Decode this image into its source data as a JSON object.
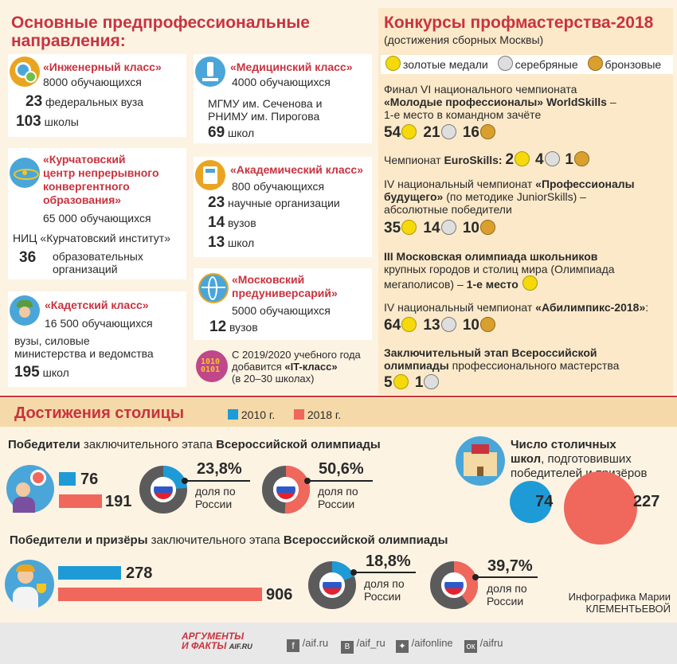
{
  "left_header": [
    "Основные предпрофессиональные",
    "направления:"
  ],
  "cards": {
    "engineering": {
      "title": "«Инженерный класс»",
      "students": "8000 обучающихся",
      "n1": "23",
      "t1": "федеральных вуза",
      "n2": "103",
      "t2": "школы"
    },
    "medical": {
      "title": "«Медицинский класс»",
      "students": "4000 обучающихся",
      "t1a": "МГМУ им. Сеченова и",
      "t1b": "РНИМУ им. Пирогова",
      "n2": "69",
      "t2": "школ"
    },
    "kurchatov": {
      "title": [
        "«Курчатовский",
        "центр непрерывного",
        "конвергентного",
        "образования»"
      ],
      "students": "65 000 обучающихся",
      "t1": "НИЦ «Курчатовский институт»",
      "n2": "36",
      "t2a": "образовательных",
      "t2b": "организаций"
    },
    "academic": {
      "title": "«Академический класс»",
      "students": "800 обучающихся",
      "n1": "23",
      "t1": "научные организации",
      "n2": "14",
      "t2": "вузов",
      "n3": "13",
      "t3": "школ"
    },
    "cadet": {
      "title": "«Кадетский класс»",
      "students": "16 500 обучающихся",
      "t1a": "вузы, силовые",
      "t1b": "министерства и ведомства",
      "n2": "195",
      "t2": "школ"
    },
    "preuniv": {
      "title": [
        "«Московский",
        "предуниверсарий»"
      ],
      "students": "5000 обучающихся",
      "n2": "12",
      "t2": "вузов"
    },
    "it": {
      "l1": "С 2019/2020 учебного года",
      "l2a": "добавится",
      "l2b": "«IT-класс»",
      "l3": "(в 20–30 школах)"
    }
  },
  "right": {
    "title": "Конкурсы профмастерства-2018",
    "subtitle": "(достижения сборных Москвы)",
    "legend": {
      "gold": "золотые медали",
      "silver": "серебряные",
      "bronze": "бронзовые"
    },
    "e1": {
      "l1": "Финал VI национального чемпионата",
      "l2": "«Молодые профессионалы» WorldSkills",
      "l2b": " –",
      "l3": "1-е место в командном зачёте",
      "g": "54",
      "s": "21",
      "b": "16"
    },
    "e2": {
      "a": "Чемпионат ",
      "b": "EuroSkills:",
      "g": "2",
      "s": "4",
      "br": "1"
    },
    "e3": {
      "l1a": "IV национальный чемпионат ",
      "l1b": "«Профессионалы",
      "l2a": "будущего»",
      "l2b": " (по методике JuniorSkills) –",
      "l3": "абсолютные победители",
      "g": "35",
      "s": "14",
      "b": "10"
    },
    "e4": {
      "l1": "III Московская олимпиада школьников",
      "l2": "крупных городов и столиц мира (Олимпиада",
      "l3a": "мегаполисов) – ",
      "l3b": "1-е место"
    },
    "e5": {
      "l1a": "IV национальный чемпионат ",
      "l1b": "«Абилимпикс-2018»",
      "l1c": ":",
      "g": "64",
      "s": "13",
      "b": "10"
    },
    "e6": {
      "l1": "Заключительный этап Всероссийской",
      "l2a": "олимпиады",
      "l2b": " профессионального мастерства",
      "g": "5",
      "s": "1"
    }
  },
  "bottom": {
    "title": "Достижения столицы",
    "sec1": {
      "a": "Победители",
      "b": " заключительного этапа ",
      "c": "Всероссийской олимпиады"
    },
    "sec2": {
      "a": "Победители и призёры",
      "b": " заключительного этапа ",
      "c": "Всероссийской олимпиады"
    },
    "share_label": [
      "доля по",
      "России"
    ],
    "schools": {
      "l1": "Число столичных",
      "l2a": "школ",
      "l2b": ", подготовивших",
      "l3": "победителей и призёров"
    },
    "credit": [
      "Инфографика Марии",
      "КЛЕМЕНТЬЕВОЙ"
    ]
  },
  "footer": {
    "logo1": "АРГУМЕНТЫ",
    "logo2": "И ФАКТЫ",
    "logo3": "AIF.RU",
    "fb": "/aif.ru",
    "vk": "/aif_ru",
    "tw": "/aifonline",
    "ok": "/aifru"
  },
  "colors": {
    "y2010": "#1e9bd7",
    "y2018": "#f0675c",
    "red": "#c8333f",
    "ring": "#5b5b5b"
  },
  "chart_data": {
    "type": "bar",
    "title": "Достижения столицы",
    "legend": [
      "2010 г.",
      "2018 г."
    ],
    "series": [
      {
        "name": "Победители заключительного этапа Всероссийской олимпиады",
        "values": [
          76,
          191
        ],
        "share_2010": "23,8%",
        "share_2018": "50,6%",
        "share_values": [
          23.8,
          50.6
        ]
      },
      {
        "name": "Победители и призёры заключительного этапа Всероссийской олимпиады",
        "values": [
          278,
          906
        ],
        "share_2010": "18,8%",
        "share_2018": "39,7%",
        "share_values": [
          18.8,
          39.7
        ]
      },
      {
        "name": "Число столичных школ, подготовивших победителей и призёров",
        "values": [
          74,
          227
        ]
      }
    ]
  }
}
